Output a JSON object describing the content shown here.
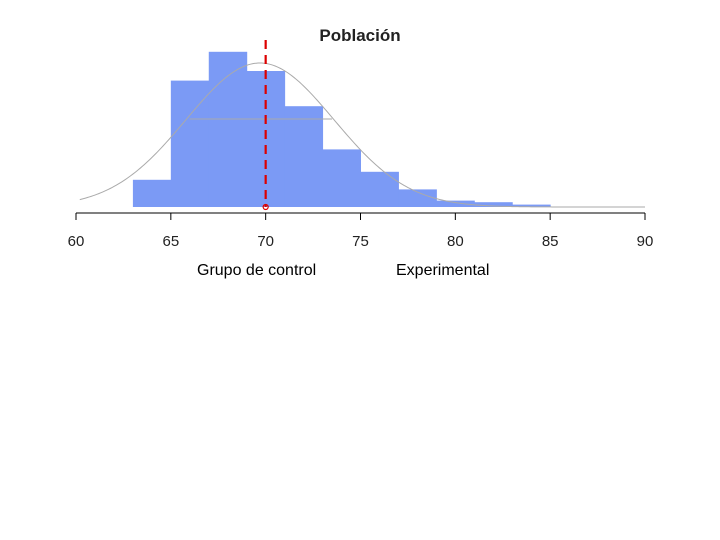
{
  "chart_data": {
    "type": "histogram",
    "title": "Población",
    "xlim": [
      60,
      90
    ],
    "x_ticks": [
      "60",
      "65",
      "70",
      "75",
      "80",
      "85",
      "90"
    ],
    "bins": [
      {
        "from": 63,
        "to": 65,
        "height": 0.17
      },
      {
        "from": 65,
        "to": 67,
        "height": 0.79
      },
      {
        "from": 67,
        "to": 69,
        "height": 0.97
      },
      {
        "from": 69,
        "to": 71,
        "height": 0.85
      },
      {
        "from": 71,
        "to": 73,
        "height": 0.63
      },
      {
        "from": 73,
        "to": 75,
        "height": 0.36
      },
      {
        "from": 75,
        "to": 77,
        "height": 0.22
      },
      {
        "from": 77,
        "to": 79,
        "height": 0.11
      },
      {
        "from": 79,
        "to": 81,
        "height": 0.04
      },
      {
        "from": 81,
        "to": 83,
        "height": 0.03
      },
      {
        "from": 83,
        "to": 85,
        "height": 0.015
      }
    ],
    "density_curve": {
      "mean": 69.7,
      "sd": 3.9,
      "peak": 0.9
    },
    "reference_line": {
      "x": 70,
      "style": "dashed",
      "color": "#dd0000"
    },
    "mean_line_level": 0.55,
    "bar_color": "#7b9af5",
    "curve_color": "#aaaaaa",
    "axis_color": "#000000"
  },
  "captions": {
    "left": "Grupo de control",
    "right": "Experimental"
  }
}
